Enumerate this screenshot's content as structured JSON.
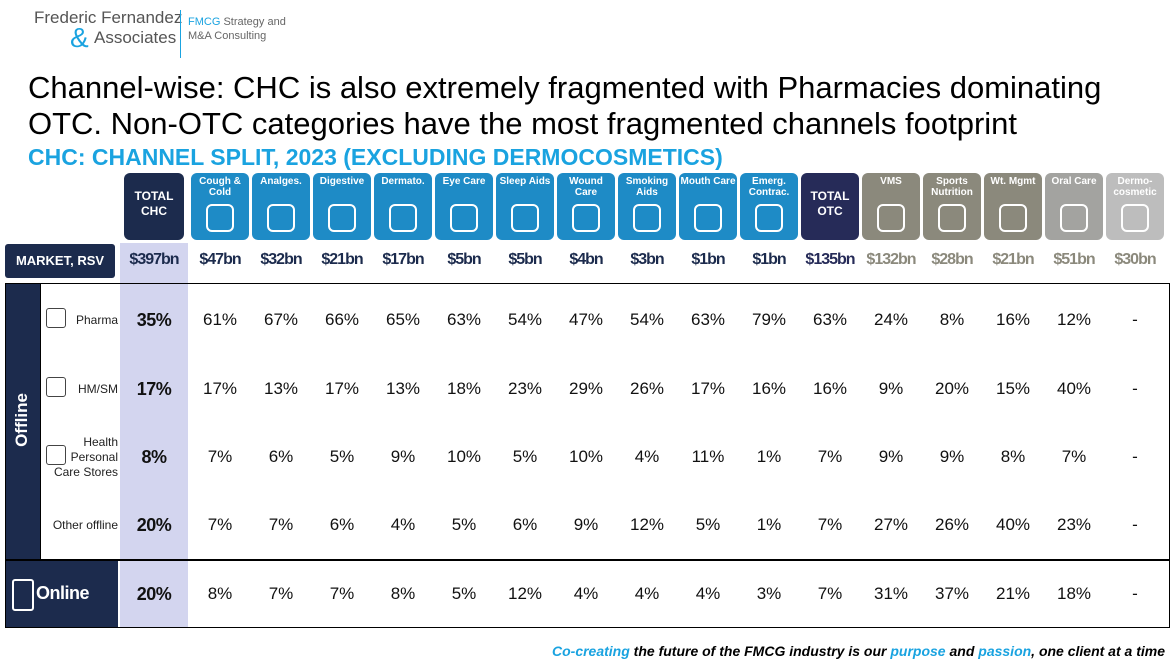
{
  "logo": {
    "name_top": "Frederic Fernandez",
    "ampersand": "&",
    "name_bottom": "Associates",
    "tagline_highlight": "FMCG",
    "tagline_rest": "Strategy and",
    "tagline_line2": "M&A Consulting"
  },
  "title_lines": [
    "Channel-wise: CHC is also extremely fragmented with Pharmacies dominating",
    "OTC. Non-OTC categories have the most fragmented channels footprint"
  ],
  "subtitle": "CHC: CHANNEL SPLIT, 2023 (EXCLUDING DERMOCOSMETICS)",
  "table": {
    "market_label": "MARKET, RSV",
    "group_label": "Offline",
    "columns": [
      {
        "name": "TOTAL CHC",
        "market": "$397bn",
        "group": "total-chc"
      },
      {
        "name": "Cough & Cold",
        "market": "$47bn",
        "group": "otc"
      },
      {
        "name": "Analges.",
        "market": "$32bn",
        "group": "otc"
      },
      {
        "name": "Digestive",
        "market": "$21bn",
        "group": "otc"
      },
      {
        "name": "Dermato.",
        "market": "$17bn",
        "group": "otc"
      },
      {
        "name": "Eye Care",
        "market": "$5bn",
        "group": "otc"
      },
      {
        "name": "Sleep Aids",
        "market": "$5bn",
        "group": "otc"
      },
      {
        "name": "Wound Care",
        "market": "$4bn",
        "group": "otc"
      },
      {
        "name": "Smoking Aids",
        "market": "$3bn",
        "group": "otc"
      },
      {
        "name": "Mouth Care",
        "market": "$1bn",
        "group": "otc"
      },
      {
        "name": "Emerg. Contrac.",
        "market": "$1bn",
        "group": "otc"
      },
      {
        "name": "TOTAL OTC",
        "market": "$135bn",
        "group": "total-otc"
      },
      {
        "name": "VMS",
        "market": "$132bn",
        "group": "non-otc"
      },
      {
        "name": "Sports Nutrition",
        "market": "$28bn",
        "group": "non-otc"
      },
      {
        "name": "Wt. Mgmt",
        "market": "$21bn",
        "group": "non-otc"
      },
      {
        "name": "Oral Care",
        "market": "$51bn",
        "group": "oral"
      },
      {
        "name": "Dermo-cosmetic",
        "market": "$30bn",
        "group": "dermo"
      }
    ],
    "rows": [
      {
        "label": "Pharma",
        "values": [
          "35%",
          "61%",
          "67%",
          "66%",
          "65%",
          "63%",
          "54%",
          "47%",
          "54%",
          "63%",
          "79%",
          "63%",
          "24%",
          "8%",
          "16%",
          "12%",
          "-"
        ]
      },
      {
        "label": "HM/SM",
        "values": [
          "17%",
          "17%",
          "13%",
          "17%",
          "13%",
          "18%",
          "23%",
          "29%",
          "26%",
          "17%",
          "16%",
          "16%",
          "9%",
          "20%",
          "15%",
          "40%",
          "-"
        ]
      },
      {
        "label": "Health Personal Care Stores",
        "values": [
          "8%",
          "7%",
          "6%",
          "5%",
          "9%",
          "10%",
          "5%",
          "10%",
          "4%",
          "11%",
          "1%",
          "7%",
          "9%",
          "9%",
          "8%",
          "7%",
          "-"
        ]
      },
      {
        "label": "Other offline",
        "values": [
          "20%",
          "7%",
          "7%",
          "6%",
          "4%",
          "5%",
          "6%",
          "9%",
          "12%",
          "5%",
          "1%",
          "7%",
          "27%",
          "26%",
          "40%",
          "23%",
          "-"
        ]
      },
      {
        "label": "Online",
        "values": [
          "20%",
          "8%",
          "7%",
          "7%",
          "8%",
          "5%",
          "12%",
          "4%",
          "4%",
          "4%",
          "3%",
          "7%",
          "31%",
          "37%",
          "21%",
          "18%",
          "-"
        ]
      }
    ]
  },
  "footer": [
    "Co-creating",
    " the future of the FMCG industry is our ",
    "purpose",
    " and ",
    "passion",
    ", one client at a time"
  ]
}
